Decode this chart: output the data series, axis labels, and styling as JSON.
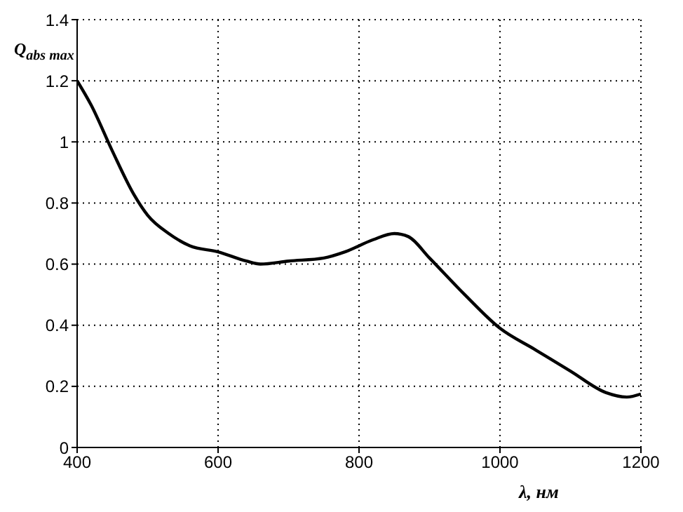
{
  "chart_data": {
    "type": "line",
    "xlabel": "λ, нм",
    "ylabel": "Q$_{abs max}$",
    "x": [
      400,
      420,
      450,
      480,
      500,
      530,
      560,
      600,
      640,
      660,
      700,
      750,
      780,
      820,
      850,
      870,
      900,
      950,
      1000,
      1050,
      1100,
      1150,
      1180,
      1200
    ],
    "series": [
      {
        "color": "#000000",
        "values": [
          1.2,
          1.12,
          0.97,
          0.83,
          0.76,
          0.7,
          0.66,
          0.64,
          0.61,
          0.6,
          0.61,
          0.62,
          0.64,
          0.68,
          0.7,
          0.69,
          0.62,
          0.5,
          0.39,
          0.32,
          0.25,
          0.18,
          0.165,
          0.175
        ]
      }
    ],
    "xlim": [
      400,
      1200
    ],
    "xticks": [
      400,
      600,
      800,
      1000,
      1200
    ],
    "ylim": [
      0,
      1.4
    ],
    "yticks": [
      0,
      0.2,
      0.4,
      0.6,
      0.8,
      1,
      1.2,
      1.4
    ],
    "grid": true,
    "line_style": "solid",
    "marker": "none",
    "legend": false
  }
}
